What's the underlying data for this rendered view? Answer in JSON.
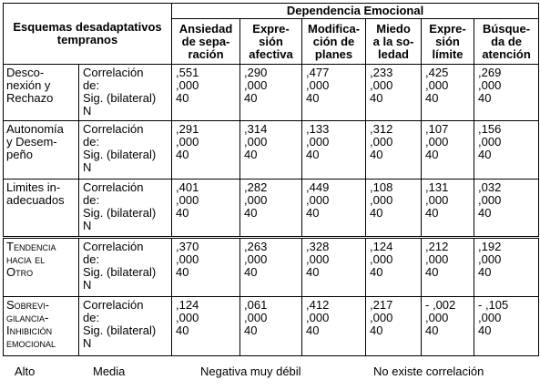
{
  "header": {
    "row_header": "Esquemas desadaptativos tempranos",
    "group": "Dependencia Emocional",
    "columns": [
      [
        "Ansiedad",
        "de sepa-",
        "ración"
      ],
      [
        "Expre-",
        "sión",
        "afectiva"
      ],
      [
        "Modifica-",
        "ción de",
        "planes"
      ],
      [
        "Miedo",
        "a la so-",
        "ledad"
      ],
      [
        "Expre-",
        "sión",
        "límite"
      ],
      [
        "Búsque-",
        "da de",
        "atención"
      ]
    ]
  },
  "rows": [
    {
      "label": [
        "Desco-",
        "nexión y",
        "Rechazo"
      ],
      "stats": [
        "Correlación de:",
        "Sig. (bilateral)",
        "N"
      ],
      "values": [
        [
          ",551",
          ",000",
          "40"
        ],
        [
          ",290",
          ",000",
          "40"
        ],
        [
          ",477",
          ",000",
          "40"
        ],
        [
          ",233",
          ",000",
          "40"
        ],
        [
          ",425",
          ",000",
          "40"
        ],
        [
          ",269",
          ",000",
          "40"
        ]
      ]
    },
    {
      "label": [
        "Autonomía",
        "y Desem-",
        "peño"
      ],
      "stats": [
        "Correlación de:",
        "Sig. (bilateral)",
        "N"
      ],
      "values": [
        [
          ",291",
          ",000",
          "40"
        ],
        [
          ",314",
          ",000",
          "40"
        ],
        [
          ",133",
          ",000",
          "40"
        ],
        [
          ",312",
          ",000",
          "40"
        ],
        [
          ",107",
          ",000",
          "40"
        ],
        [
          ",156",
          ",000",
          "40"
        ]
      ]
    },
    {
      "label": [
        "Limites in-",
        "adecuados"
      ],
      "stats": [
        "Correlación de:",
        "Sig. (bilateral)",
        "N"
      ],
      "values": [
        [
          ",401",
          ",000",
          "40"
        ],
        [
          ",282",
          ",000",
          "40"
        ],
        [
          ",449",
          ",000",
          "40"
        ],
        [
          ",108",
          ",000",
          "40"
        ],
        [
          ",131",
          ",000",
          "40"
        ],
        [
          ",032",
          ",000",
          "40"
        ]
      ]
    },
    {
      "label": [
        "Tendencia",
        "hacia el",
        "Otro"
      ],
      "stats": [
        "Correlación de:",
        "Sig. (bilateral)",
        "N"
      ],
      "values": [
        [
          ",370",
          ",000",
          "40"
        ],
        [
          ",263",
          ",000",
          "40"
        ],
        [
          ",328",
          ",000",
          "40"
        ],
        [
          ",124",
          ",000",
          "40"
        ],
        [
          ",212",
          ",000",
          "40"
        ],
        [
          ",192",
          ",000",
          "40"
        ]
      ]
    },
    {
      "label": [
        "Sobrevi-",
        "gilancia-",
        "Inhibición",
        "emocional"
      ],
      "stats": [
        "Correlación de:",
        "Sig. (bilateral)",
        "N"
      ],
      "values": [
        [
          ",124",
          ",000",
          "40"
        ],
        [
          ",061",
          ",000",
          "40"
        ],
        [
          ",412",
          ",000",
          "40"
        ],
        [
          ",217",
          ",000",
          "40"
        ],
        [
          "- ,002",
          ",000",
          "40"
        ],
        [
          "- ,105",
          ",000",
          "40"
        ]
      ]
    }
  ],
  "legend": [
    "Alto",
    "Media",
    "Negativa muy débil",
    "No existe correlación"
  ]
}
